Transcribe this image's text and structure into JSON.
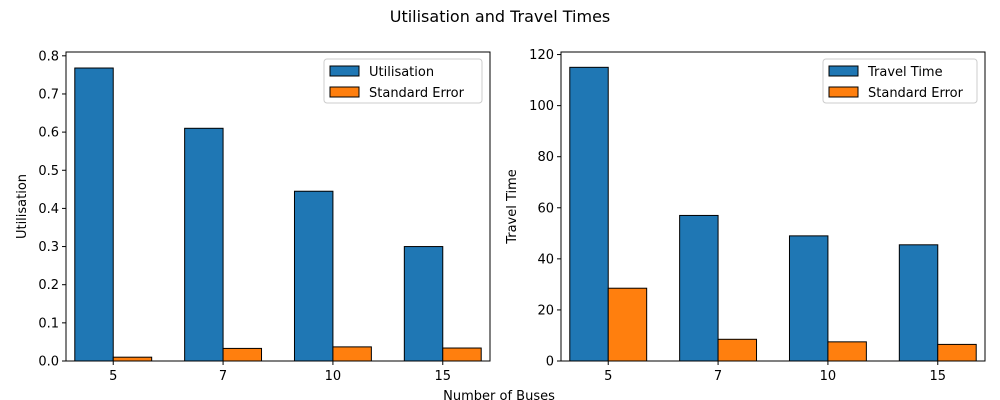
{
  "figure": {
    "suptitle": "Utilisation and Travel Times",
    "shared_xlabel": "Number of Buses"
  },
  "chart_data": [
    {
      "type": "bar",
      "categories": [
        "5",
        "7",
        "10",
        "15"
      ],
      "series": [
        {
          "name": "Utilisation",
          "values": [
            0.768,
            0.61,
            0.445,
            0.3
          ],
          "color": "#1f77b4"
        },
        {
          "name": "Standard Error",
          "values": [
            0.01,
            0.033,
            0.037,
            0.034
          ],
          "color": "#ff7f0e"
        }
      ],
      "xlabel": "",
      "ylabel": "Utilisation",
      "ylim": [
        0,
        0.81
      ],
      "yticks": [
        0.0,
        0.1,
        0.2,
        0.3,
        0.4,
        0.5,
        0.6,
        0.7,
        0.8
      ],
      "ytick_labels": [
        "0.0",
        "0.1",
        "0.2",
        "0.3",
        "0.4",
        "0.5",
        "0.6",
        "0.7",
        "0.8"
      ],
      "legend": "top-right",
      "grid": false
    },
    {
      "type": "bar",
      "categories": [
        "5",
        "7",
        "10",
        "15"
      ],
      "series": [
        {
          "name": "Travel Time",
          "values": [
            115,
            57,
            49,
            45.5
          ],
          "color": "#1f77b4"
        },
        {
          "name": "Standard Error",
          "values": [
            28.5,
            8.5,
            7.5,
            6.5
          ],
          "color": "#ff7f0e"
        }
      ],
      "xlabel": "",
      "ylabel": "Travel Time",
      "ylim": [
        0,
        121
      ],
      "yticks": [
        0,
        20,
        40,
        60,
        80,
        100,
        120
      ],
      "ytick_labels": [
        "0",
        "20",
        "40",
        "60",
        "80",
        "100",
        "120"
      ],
      "legend": "top-right",
      "grid": false
    }
  ]
}
